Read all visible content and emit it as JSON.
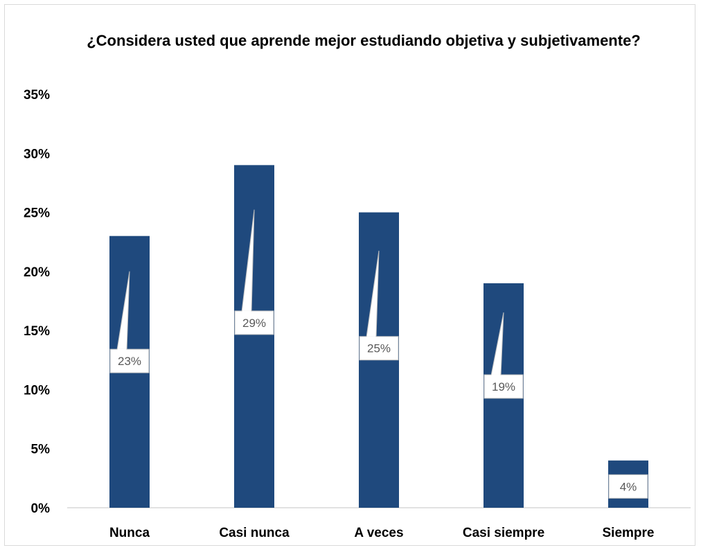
{
  "chart_data": {
    "type": "bar",
    "title": "¿Considera usted que aprende mejor estudiando objetiva y subjetivamente?",
    "categories": [
      "Nunca",
      "Casi nunca",
      "A veces",
      "Casi siempre",
      "Siempre"
    ],
    "values": [
      23,
      29,
      25,
      19,
      4
    ],
    "data_labels": [
      "23%",
      "29%",
      "25%",
      "19%",
      "4%"
    ],
    "y_ticks": [
      "0%",
      "5%",
      "10%",
      "15%",
      "20%",
      "25%",
      "30%",
      "35%"
    ],
    "ylim": [
      0,
      35
    ],
    "xlabel": "",
    "ylabel": "",
    "grid": false,
    "legend": "none",
    "bar_color": "#1f497d"
  }
}
